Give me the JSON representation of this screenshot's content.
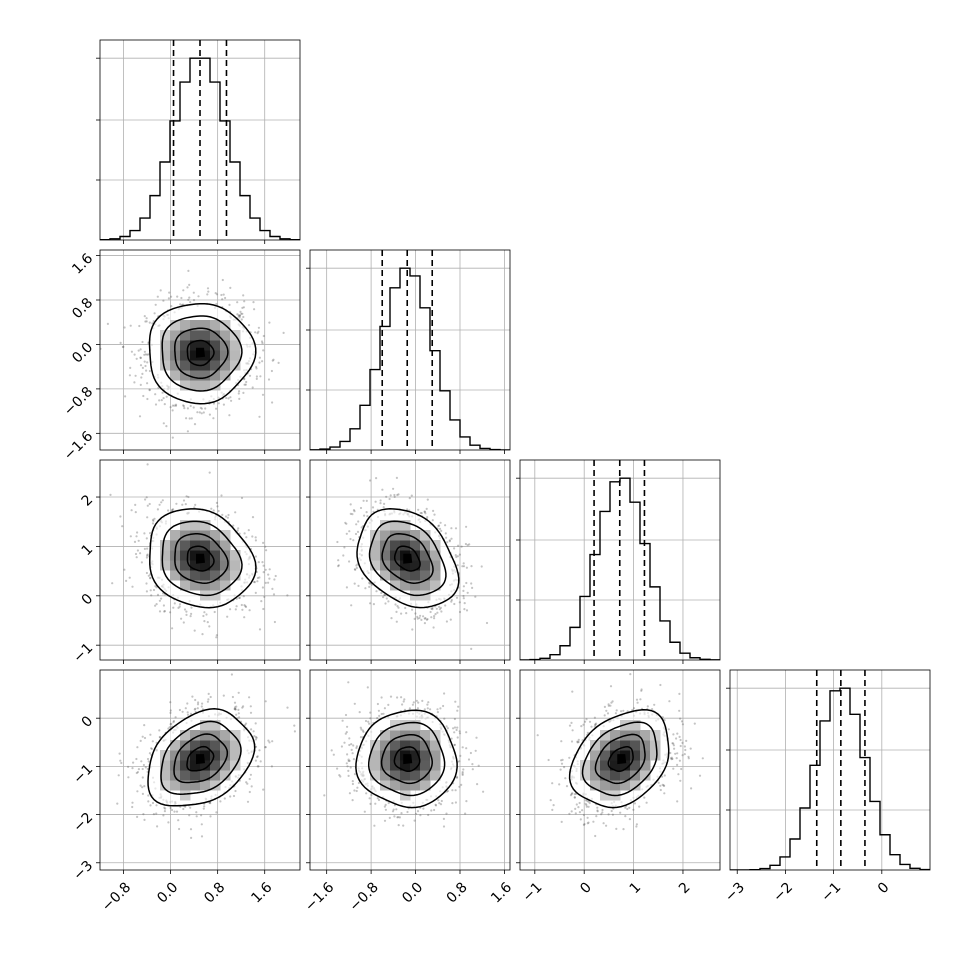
{
  "chart_data": {
    "type": "corner",
    "grid": true,
    "colors": {
      "line": "#000000",
      "grid": "#b0b0b0",
      "scatter": "#555555",
      "density_low": "#ffffff",
      "density_high": "#000000"
    },
    "params": [
      {
        "range": [
          -1.2,
          2.2
        ],
        "ticks": [
          -0.8,
          0.0,
          0.8,
          1.6
        ],
        "tick_labels": [
          "−0.8",
          "0.0",
          "0.8",
          "1.6"
        ],
        "mean": 0.5,
        "sigma": 0.45,
        "quantiles": [
          0.05,
          0.5,
          0.95
        ]
      },
      {
        "range": [
          -1.9,
          1.7
        ],
        "ticks": [
          -1.6,
          -0.8,
          0.0,
          0.8,
          1.6
        ],
        "tick_labels": [
          "−1.6",
          "−0.8",
          "0.0",
          "0.8",
          "1.6"
        ],
        "mean": -0.15,
        "sigma": 0.45,
        "quantiles": [
          -0.6,
          -0.15,
          0.3
        ]
      },
      {
        "range": [
          -1.3,
          2.75
        ],
        "ticks": [
          -1,
          0,
          1,
          2
        ],
        "tick_labels": [
          "−1",
          "0",
          "1",
          "2"
        ],
        "mean": 0.75,
        "sigma": 0.5,
        "quantiles": [
          0.2,
          0.72,
          1.22
        ]
      },
      {
        "range": [
          -3.15,
          1.0
        ],
        "ticks": [
          -3,
          -2,
          -1,
          0
        ],
        "tick_labels": [
          "−3",
          "−2",
          "−1",
          "0"
        ],
        "mean": -0.85,
        "sigma": 0.5,
        "quantiles": [
          -1.35,
          -0.85,
          -0.35
        ]
      }
    ],
    "correlations": {
      "1-0": 0.0,
      "2-0": -0.15,
      "2-1": -0.3,
      "3-0": 0.3,
      "3-1": 0.0,
      "3-2": 0.3
    },
    "hist_bins": 20,
    "levels_sigma": [
      0.5,
      1.0,
      1.5,
      2.0
    ]
  }
}
